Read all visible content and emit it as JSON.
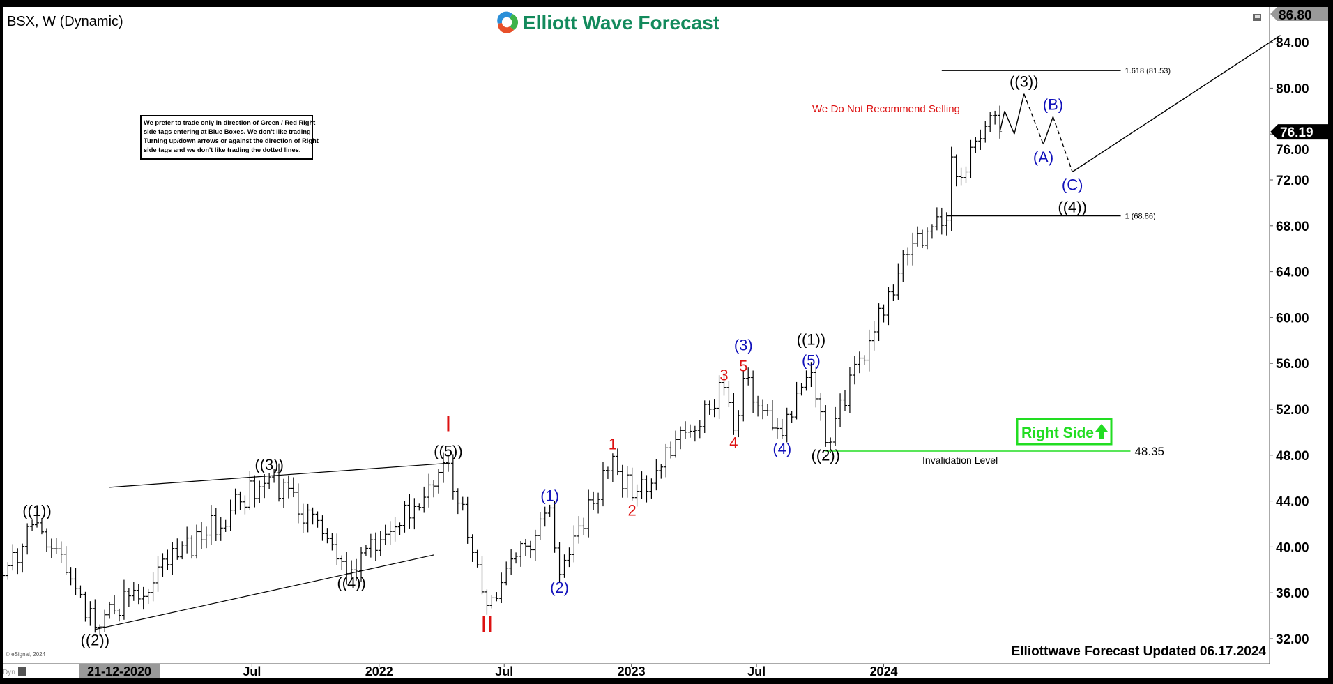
{
  "header": {
    "symbol_title": "BSX, W (Dynamic)",
    "logo_text": "Elliott Wave Forecast",
    "brand_color": "#138a5c"
  },
  "notes": {
    "disclaimer": [
      "We prefer to trade only in direction of Green / Red Right",
      "side tags entering at Blue Boxes. We don't like trading",
      "Turning up/down arrows or against the direction of Right",
      "side tags and we don't like trading the dotted lines."
    ],
    "recommendation": "We Do Not Recommend Selling",
    "updated": "Elliottwave Forecast Updated 06.17.2024",
    "copyright": "© eSignal, 2024",
    "dyn_label": "Dyn",
    "right_side": "Right Side",
    "invalidation_label": "Invalidation Level"
  },
  "colors": {
    "red": "#dd1111",
    "blue": "#1111bb",
    "black": "#000000",
    "green": "#22dd22"
  },
  "chart_data": {
    "type": "ohlc-bar",
    "symbol": "BSX",
    "interval": "W",
    "price_axis": {
      "ylim": [
        31,
        86.8
      ],
      "ticks": [
        "84.00",
        "80.00",
        "76.00",
        "72.00",
        "68.00",
        "64.00",
        "60.00",
        "56.00",
        "52.00",
        "48.00",
        "44.00",
        "40.00",
        "36.00",
        "32.00"
      ],
      "top_tag": "86.80",
      "last_price": "76.19"
    },
    "time_axis": {
      "labels": [
        {
          "date": "2020-12-21",
          "text": "21-12-2020",
          "highlight": true
        },
        {
          "date": "2021-07-01",
          "text": "Jul"
        },
        {
          "date": "2022-01-01",
          "text": "2022"
        },
        {
          "date": "2022-07-01",
          "text": "Jul"
        },
        {
          "date": "2023-01-01",
          "text": "2023"
        },
        {
          "date": "2023-07-01",
          "text": "Jul"
        },
        {
          "date": "2024-01-01",
          "text": "2024"
        }
      ]
    },
    "price_pivots": [
      {
        "date": "2020-07-06",
        "price": 37.5
      },
      {
        "date": "2020-08-24",
        "price": 42.1,
        "label": "((1))",
        "color": "black",
        "pos": "above"
      },
      {
        "date": "2020-11-16",
        "price": 33.0,
        "label": "((2))",
        "color": "black",
        "pos": "below"
      },
      {
        "date": "2021-07-26",
        "price": 46.1,
        "label": "((3))",
        "color": "black",
        "pos": "above"
      },
      {
        "date": "2021-11-22",
        "price": 38.0,
        "label": "((4))",
        "color": "black",
        "pos": "below"
      },
      {
        "date": "2022-04-11",
        "price": 47.3,
        "label": "((5))",
        "color": "black",
        "pos": "above",
        "label2": "I",
        "color2": "red"
      },
      {
        "date": "2022-06-06",
        "price": 34.9,
        "label": "II",
        "color": "red",
        "pos": "below",
        "big": true
      },
      {
        "date": "2022-09-05",
        "price": 43.4,
        "label": "(1)",
        "color": "blue",
        "pos": "above"
      },
      {
        "date": "2022-09-19",
        "price": 37.6,
        "label": "(2)",
        "color": "blue",
        "pos": "below"
      },
      {
        "date": "2022-12-05",
        "price": 47.9,
        "label": "1",
        "color": "red",
        "pos": "above"
      },
      {
        "date": "2023-01-02",
        "price": 44.3,
        "label": "2",
        "color": "red",
        "pos": "below"
      },
      {
        "date": "2023-05-15",
        "price": 53.9,
        "label": "3",
        "color": "red",
        "pos": "above"
      },
      {
        "date": "2023-05-29",
        "price": 50.2,
        "label": "4",
        "color": "red",
        "pos": "below"
      },
      {
        "date": "2023-06-12",
        "price": 54.7,
        "label": "5",
        "color": "red",
        "pos": "above",
        "label2": "(3)",
        "color2": "blue"
      },
      {
        "date": "2023-08-07",
        "price": 49.7,
        "label": "(4)",
        "color": "blue",
        "pos": "below"
      },
      {
        "date": "2023-09-18",
        "price": 55.2,
        "label": "(5)",
        "color": "blue",
        "pos": "above",
        "label2": "((1))",
        "color2": "black"
      },
      {
        "date": "2023-10-09",
        "price": 49.1,
        "label": "((2))",
        "color": "black",
        "pos": "below"
      },
      {
        "date": "2024-02-05",
        "price": 65.5
      },
      {
        "date": "2024-04-01",
        "price": 68.5
      },
      {
        "date": "2024-04-08",
        "price": 74.0
      },
      {
        "date": "2024-04-22",
        "price": 72.2
      },
      {
        "date": "2024-06-03",
        "price": 77.6
      },
      {
        "date": "2024-06-17",
        "price": 76.19
      }
    ],
    "projection": [
      {
        "date": "2024-06-17",
        "price": 76.2,
        "style": "solid"
      },
      {
        "date": "2024-06-24",
        "price": 78.0,
        "style": "solid"
      },
      {
        "date": "2024-07-08",
        "price": 76.0,
        "style": "solid"
      },
      {
        "date": "2024-07-22",
        "price": 79.5,
        "style": "dashed",
        "label": "((3))",
        "color": "black",
        "pos": "above"
      },
      {
        "date": "2024-08-19",
        "price": 75.1,
        "style": "solid",
        "label": "(A)",
        "color": "blue",
        "pos": "below"
      },
      {
        "date": "2024-09-02",
        "price": 77.5,
        "style": "dashed",
        "label": "(B)",
        "color": "blue",
        "pos": "above"
      },
      {
        "date": "2024-09-30",
        "price": 72.7,
        "style": "solid",
        "label": "(C)",
        "color": "blue",
        "pos": "below",
        "label2": "((4))",
        "color2": "black"
      },
      {
        "date": "2025-07-28",
        "price": 84.6
      }
    ],
    "trend_lines": [
      {
        "from": {
          "date": "2020-12-07",
          "price": 45.2
        },
        "to": {
          "date": "2022-04-11",
          "price": 47.3
        }
      },
      {
        "from": {
          "date": "2020-11-16",
          "price": 32.8
        },
        "to": {
          "date": "2022-03-21",
          "price": 39.3
        }
      }
    ],
    "fib_levels": [
      {
        "label": "1.618 (81.53)",
        "price": 81.53,
        "from": "2024-03-25",
        "to": "2024-12-09"
      },
      {
        "label": "1 (68.86)",
        "price": 68.86,
        "from": "2024-04-01",
        "to": "2024-12-09"
      }
    ],
    "invalidation": {
      "price": 48.35,
      "price_text": "48.35",
      "from": "2023-10-09",
      "to": "2024-12-23"
    }
  }
}
